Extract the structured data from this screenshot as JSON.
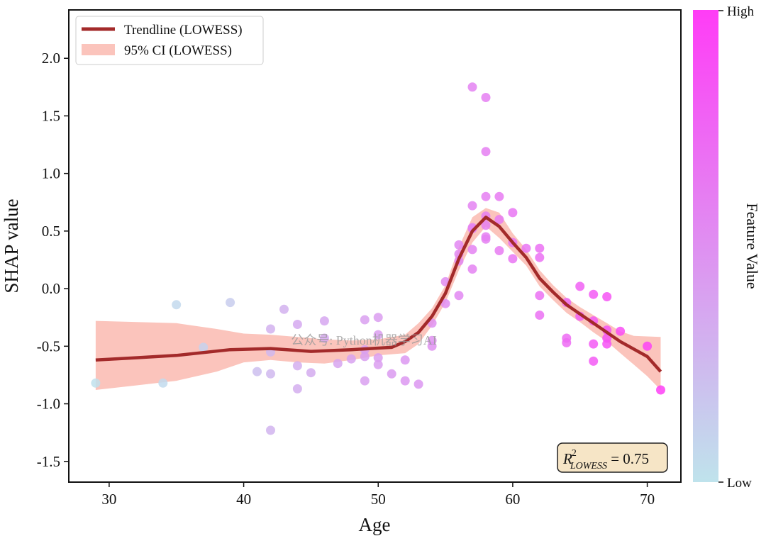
{
  "chart_data": {
    "type": "scatter",
    "xlabel": "Age",
    "ylabel": "SHAP value",
    "xlim": [
      27,
      72.5
    ],
    "ylim": [
      -1.68,
      2.42
    ],
    "xticks": [
      30,
      40,
      50,
      60,
      70
    ],
    "yticks": [
      2.0,
      1.5,
      1.0,
      0.5,
      0.0,
      -0.5,
      -1.0,
      -1.5
    ],
    "grid": false,
    "legend": {
      "position": "top-left",
      "entries": [
        "Trendline (LOWESS)",
        "95% CI (LOWESS)"
      ]
    },
    "colorbar": {
      "label": "Feature Value",
      "high_label": "High",
      "low_label": "Low",
      "low_color": "#bfe3ec",
      "high_color": "#ff3cf6"
    },
    "annotation": {
      "r2_symbol": "R",
      "r2_superscript": "2",
      "r2_subscript": "LOWESS",
      "r2_text": " = 0.75",
      "box_color": "#f6e5c6"
    },
    "watermark": "公众号: Python机器学习AI",
    "trend_color": "#a32a2a",
    "ci_color": "#fbc4bc",
    "trendline": [
      [
        29,
        -0.62
      ],
      [
        32,
        -0.6
      ],
      [
        35,
        -0.58
      ],
      [
        39,
        -0.53
      ],
      [
        42,
        -0.52
      ],
      [
        45,
        -0.545
      ],
      [
        48,
        -0.53
      ],
      [
        51,
        -0.51
      ],
      [
        52,
        -0.46
      ],
      [
        53,
        -0.38
      ],
      [
        54,
        -0.24
      ],
      [
        55,
        -0.04
      ],
      [
        56,
        0.26
      ],
      [
        57,
        0.5
      ],
      [
        58,
        0.62
      ],
      [
        59,
        0.54
      ],
      [
        60,
        0.4
      ],
      [
        61,
        0.27
      ],
      [
        62,
        0.09
      ],
      [
        63,
        -0.03
      ],
      [
        64,
        -0.14
      ],
      [
        65,
        -0.22
      ],
      [
        66,
        -0.3
      ],
      [
        67,
        -0.38
      ],
      [
        68,
        -0.46
      ],
      [
        70,
        -0.59
      ],
      [
        71,
        -0.72
      ]
    ],
    "ci_upper": [
      [
        29,
        -0.28
      ],
      [
        35,
        -0.3
      ],
      [
        38,
        -0.35
      ],
      [
        40,
        -0.39
      ],
      [
        42,
        -0.4
      ],
      [
        44,
        -0.42
      ],
      [
        46,
        -0.44
      ],
      [
        48,
        -0.45
      ],
      [
        50,
        -0.44
      ],
      [
        52,
        -0.4
      ],
      [
        53,
        -0.3
      ],
      [
        54,
        -0.17
      ],
      [
        55,
        0.03
      ],
      [
        56,
        0.36
      ],
      [
        57,
        0.62
      ],
      [
        58,
        0.7
      ],
      [
        59,
        0.66
      ],
      [
        60,
        0.48
      ],
      [
        61,
        0.34
      ],
      [
        62,
        0.16
      ],
      [
        63,
        0.03
      ],
      [
        64,
        -0.08
      ],
      [
        65,
        -0.16
      ],
      [
        66,
        -0.23
      ],
      [
        67,
        -0.3
      ],
      [
        68,
        -0.37
      ],
      [
        69,
        -0.41
      ],
      [
        71,
        -0.42
      ]
    ],
    "ci_lower": [
      [
        29,
        -0.88
      ],
      [
        32,
        -0.84
      ],
      [
        35,
        -0.8
      ],
      [
        38,
        -0.72
      ],
      [
        40,
        -0.64
      ],
      [
        42,
        -0.62
      ],
      [
        44,
        -0.64
      ],
      [
        46,
        -0.65
      ],
      [
        48,
        -0.62
      ],
      [
        50,
        -0.58
      ],
      [
        52,
        -0.56
      ],
      [
        53,
        -0.48
      ],
      [
        54,
        -0.32
      ],
      [
        55,
        -0.12
      ],
      [
        56,
        0.16
      ],
      [
        57,
        0.4
      ],
      [
        58,
        0.54
      ],
      [
        59,
        0.44
      ],
      [
        60,
        0.32
      ],
      [
        61,
        0.2
      ],
      [
        62,
        0.02
      ],
      [
        63,
        -0.1
      ],
      [
        64,
        -0.21
      ],
      [
        65,
        -0.29
      ],
      [
        66,
        -0.38
      ],
      [
        67,
        -0.46
      ],
      [
        68,
        -0.56
      ],
      [
        69,
        -0.66
      ],
      [
        70,
        -0.76
      ],
      [
        71,
        -0.88
      ]
    ],
    "points": [
      {
        "x": 29,
        "y": -0.82,
        "v": 0.02
      },
      {
        "x": 34,
        "y": -0.82,
        "v": 0.05
      },
      {
        "x": 35,
        "y": -0.14,
        "v": 0.06
      },
      {
        "x": 37,
        "y": -0.51,
        "v": 0.1
      },
      {
        "x": 39,
        "y": -0.12,
        "v": 0.14
      },
      {
        "x": 41,
        "y": -0.72,
        "v": 0.22
      },
      {
        "x": 42,
        "y": -0.35,
        "v": 0.3
      },
      {
        "x": 42,
        "y": -0.55,
        "v": 0.26
      },
      {
        "x": 42,
        "y": -0.74,
        "v": 0.26
      },
      {
        "x": 42,
        "y": -1.23,
        "v": 0.28
      },
      {
        "x": 43,
        "y": -0.18,
        "v": 0.3
      },
      {
        "x": 44,
        "y": -0.31,
        "v": 0.35
      },
      {
        "x": 44,
        "y": -0.67,
        "v": 0.32
      },
      {
        "x": 44,
        "y": -0.87,
        "v": 0.32
      },
      {
        "x": 45,
        "y": -0.73,
        "v": 0.33
      },
      {
        "x": 46,
        "y": -0.28,
        "v": 0.36
      },
      {
        "x": 46,
        "y": -0.43,
        "v": 0.36
      },
      {
        "x": 47,
        "y": -0.65,
        "v": 0.38
      },
      {
        "x": 48,
        "y": -0.61,
        "v": 0.39
      },
      {
        "x": 49,
        "y": -0.27,
        "v": 0.4
      },
      {
        "x": 49,
        "y": -0.53,
        "v": 0.4
      },
      {
        "x": 49,
        "y": -0.59,
        "v": 0.4
      },
      {
        "x": 49,
        "y": -0.8,
        "v": 0.4
      },
      {
        "x": 50,
        "y": -0.25,
        "v": 0.42
      },
      {
        "x": 50,
        "y": -0.4,
        "v": 0.42
      },
      {
        "x": 50,
        "y": -0.6,
        "v": 0.42
      },
      {
        "x": 50,
        "y": -0.66,
        "v": 0.42
      },
      {
        "x": 51,
        "y": -0.74,
        "v": 0.44
      },
      {
        "x": 52,
        "y": -0.62,
        "v": 0.45
      },
      {
        "x": 52,
        "y": -0.8,
        "v": 0.45
      },
      {
        "x": 53,
        "y": -0.83,
        "v": 0.46
      },
      {
        "x": 54,
        "y": -0.3,
        "v": 0.5
      },
      {
        "x": 54,
        "y": -0.45,
        "v": 0.5
      },
      {
        "x": 54,
        "y": -0.5,
        "v": 0.5
      },
      {
        "x": 55,
        "y": 0.06,
        "v": 0.52
      },
      {
        "x": 55,
        "y": -0.13,
        "v": 0.52
      },
      {
        "x": 56,
        "y": 0.38,
        "v": 0.55
      },
      {
        "x": 56,
        "y": 0.3,
        "v": 0.55
      },
      {
        "x": 56,
        "y": 0.24,
        "v": 0.55
      },
      {
        "x": 56,
        "y": -0.06,
        "v": 0.55
      },
      {
        "x": 57,
        "y": 1.75,
        "v": 0.58
      },
      {
        "x": 57,
        "y": 0.72,
        "v": 0.58
      },
      {
        "x": 57,
        "y": 0.53,
        "v": 0.58
      },
      {
        "x": 57,
        "y": 0.52,
        "v": 0.58
      },
      {
        "x": 57,
        "y": 0.34,
        "v": 0.58
      },
      {
        "x": 57,
        "y": 0.17,
        "v": 0.58
      },
      {
        "x": 58,
        "y": 1.66,
        "v": 0.6
      },
      {
        "x": 58,
        "y": 1.19,
        "v": 0.6
      },
      {
        "x": 58,
        "y": 0.8,
        "v": 0.6
      },
      {
        "x": 58,
        "y": 0.63,
        "v": 0.6
      },
      {
        "x": 58,
        "y": 0.55,
        "v": 0.6
      },
      {
        "x": 58,
        "y": 0.45,
        "v": 0.6
      },
      {
        "x": 58,
        "y": 0.43,
        "v": 0.6
      },
      {
        "x": 59,
        "y": 0.8,
        "v": 0.62
      },
      {
        "x": 59,
        "y": 0.6,
        "v": 0.62
      },
      {
        "x": 59,
        "y": 0.33,
        "v": 0.62
      },
      {
        "x": 60,
        "y": 0.66,
        "v": 0.65
      },
      {
        "x": 60,
        "y": 0.4,
        "v": 0.65
      },
      {
        "x": 60,
        "y": 0.26,
        "v": 0.65
      },
      {
        "x": 61,
        "y": 0.35,
        "v": 0.66
      },
      {
        "x": 62,
        "y": 0.35,
        "v": 0.68
      },
      {
        "x": 62,
        "y": 0.27,
        "v": 0.68
      },
      {
        "x": 62,
        "y": -0.06,
        "v": 0.68
      },
      {
        "x": 62,
        "y": -0.23,
        "v": 0.68
      },
      {
        "x": 64,
        "y": -0.12,
        "v": 0.72
      },
      {
        "x": 64,
        "y": -0.43,
        "v": 0.72
      },
      {
        "x": 64,
        "y": -0.47,
        "v": 0.72
      },
      {
        "x": 65,
        "y": 0.02,
        "v": 0.78
      },
      {
        "x": 65,
        "y": -0.24,
        "v": 0.78
      },
      {
        "x": 66,
        "y": -0.05,
        "v": 0.82
      },
      {
        "x": 66,
        "y": -0.28,
        "v": 0.82
      },
      {
        "x": 66,
        "y": -0.48,
        "v": 0.82
      },
      {
        "x": 66,
        "y": -0.63,
        "v": 0.82
      },
      {
        "x": 67,
        "y": -0.07,
        "v": 0.86
      },
      {
        "x": 67,
        "y": -0.36,
        "v": 0.86
      },
      {
        "x": 67,
        "y": -0.43,
        "v": 0.86
      },
      {
        "x": 67,
        "y": -0.48,
        "v": 0.86
      },
      {
        "x": 68,
        "y": -0.37,
        "v": 0.9
      },
      {
        "x": 70,
        "y": -0.5,
        "v": 0.95
      },
      {
        "x": 71,
        "y": -0.88,
        "v": 0.98
      }
    ]
  }
}
